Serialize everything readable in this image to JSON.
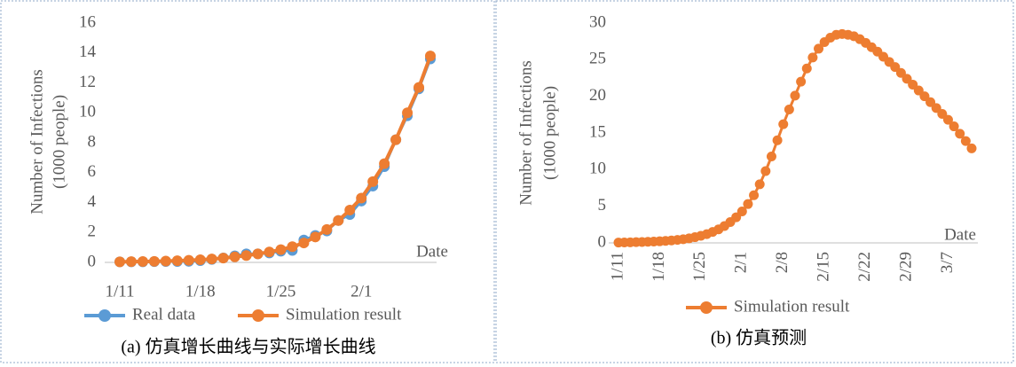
{
  "chart_data": [
    {
      "type": "line",
      "y_label": [
        "Number of Infections",
        "(1000 people)"
      ],
      "annotation": "Date",
      "caption": "(a) 仿真增长曲线与实际增长曲线",
      "categories": [
        "1/11",
        null,
        null,
        null,
        null,
        null,
        null,
        "1/18",
        null,
        null,
        null,
        null,
        null,
        null,
        "1/25",
        null,
        null,
        null,
        null,
        null,
        null,
        "2/1",
        null,
        null,
        null,
        null,
        null,
        null
      ],
      "series": [
        {
          "name": "Real data",
          "color": "#5b9bd5",
          "values": [
            0.04,
            0.04,
            0.04,
            0.05,
            0.06,
            0.06,
            0.07,
            0.12,
            0.2,
            0.3,
            0.44,
            0.57,
            0.57,
            0.63,
            0.75,
            0.8,
            1.5,
            1.8,
            2.1,
            2.8,
            3.2,
            4.1,
            5.1,
            6.4,
            8.2,
            9.8,
            11.6,
            13.6
          ]
        },
        {
          "name": "Simulation result",
          "color": "#ed7d31",
          "values": [
            0.04,
            0.05,
            0.06,
            0.07,
            0.09,
            0.11,
            0.14,
            0.18,
            0.23,
            0.29,
            0.37,
            0.46,
            0.57,
            0.7,
            0.85,
            1.05,
            1.3,
            1.7,
            2.2,
            2.8,
            3.5,
            4.3,
            5.4,
            6.6,
            8.2,
            10,
            11.7,
            13.8
          ]
        }
      ],
      "ylim": [
        0,
        16
      ],
      "yticks": [
        0,
        2,
        4,
        6,
        8,
        10,
        12,
        14,
        16
      ],
      "grid": false,
      "legend": "bottom"
    },
    {
      "type": "line",
      "y_label": [
        "Number of Infections",
        "(1000 people)"
      ],
      "annotation": "Date",
      "caption": "(b)  仿真预测",
      "categories": [
        "1/11",
        null,
        null,
        null,
        null,
        null,
        null,
        "1/18",
        null,
        null,
        null,
        null,
        null,
        null,
        "1/25",
        null,
        null,
        null,
        null,
        null,
        null,
        "2/1",
        null,
        null,
        null,
        null,
        null,
        null,
        "2/8",
        null,
        null,
        null,
        null,
        null,
        null,
        "2/15",
        null,
        null,
        null,
        null,
        null,
        null,
        "2/22",
        null,
        null,
        null,
        null,
        null,
        null,
        "2/29",
        null,
        null,
        null,
        null,
        null,
        null,
        "3/7",
        null,
        null,
        null,
        null
      ],
      "series": [
        {
          "name": "Simulation result",
          "color": "#ed7d31",
          "values": [
            0.05,
            0.06,
            0.08,
            0.1,
            0.12,
            0.15,
            0.18,
            0.22,
            0.27,
            0.33,
            0.41,
            0.5,
            0.62,
            0.78,
            0.97,
            1.2,
            1.5,
            1.85,
            2.3,
            2.85,
            3.5,
            4.3,
            5.3,
            6.5,
            8.0,
            9.8,
            11.8,
            14,
            16.2,
            18.2,
            20.1,
            22,
            23.8,
            25.3,
            26.5,
            27.4,
            28,
            28.4,
            28.5,
            28.4,
            28.2,
            27.8,
            27.3,
            26.7,
            26.1,
            25.4,
            24.7,
            24.0,
            23.2,
            22.4,
            21.6,
            20.8,
            20.0,
            19.2,
            18.4,
            17.6,
            16.8,
            15.9,
            14.9,
            13.9,
            12.9
          ]
        }
      ],
      "ylim": [
        0,
        30
      ],
      "yticks": [
        0,
        5,
        10,
        15,
        20,
        25,
        30
      ],
      "grid": false,
      "legend": "bottom"
    }
  ]
}
